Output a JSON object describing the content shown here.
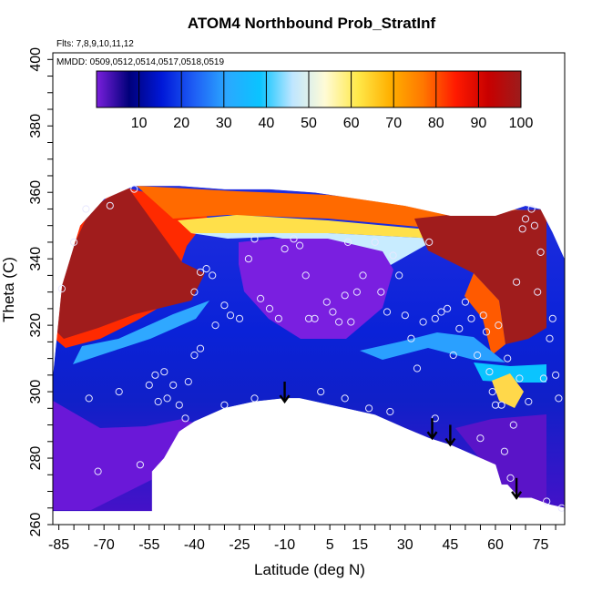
{
  "chart_data": {
    "type": "heatmap",
    "title": "ATOM4 Northbound Prob_StratInf",
    "subtitle_lines": [
      "Flts: 7,8,9,10,11,12",
      "MMDD: 0509,0512,0514,0517,0518,0519"
    ],
    "xlabel": "Latitude (deg N)",
    "ylabel": "Theta (C)",
    "xlim": [
      -87,
      83
    ],
    "ylim": [
      260,
      402
    ],
    "x_ticks": [
      -85,
      -70,
      -55,
      -40,
      -25,
      -10,
      5,
      15,
      30,
      45,
      60,
      75
    ],
    "y_ticks": [
      260,
      280,
      300,
      320,
      340,
      360,
      380,
      400
    ],
    "colorbar": {
      "ticks": [
        10,
        20,
        30,
        40,
        50,
        60,
        70,
        80,
        90,
        100
      ],
      "range": [
        0,
        100
      ],
      "colors": [
        "#7a1fdc",
        "#00007a",
        "#0018d8",
        "#1f5ff5",
        "#2aa8ff",
        "#0ac4ff",
        "#bfe6ff",
        "#fffbd6",
        "#ffe94a",
        "#ffb000",
        "#ff7800",
        "#ff1a00",
        "#c80000",
        "#9c1c1c"
      ]
    },
    "arrows": [
      {
        "lat": -10,
        "theta": 297
      },
      {
        "lat": 39,
        "theta": 286
      },
      {
        "lat": 45,
        "theta": 284
      },
      {
        "lat": 67,
        "theta": 268
      }
    ],
    "boundary": {
      "top": [
        [
          -87,
          305
        ],
        [
          -84,
          332
        ],
        [
          -78,
          350
        ],
        [
          -70,
          358
        ],
        [
          -60,
          362
        ],
        [
          -45,
          362
        ],
        [
          -30,
          361
        ],
        [
          -15,
          361
        ],
        [
          0,
          360
        ],
        [
          15,
          358
        ],
        [
          30,
          356
        ],
        [
          45,
          353
        ],
        [
          60,
          353
        ],
        [
          70,
          356
        ],
        [
          75,
          355
        ],
        [
          79,
          348
        ],
        [
          83,
          340
        ]
      ],
      "bottom": [
        [
          83,
          265
        ],
        [
          78,
          266
        ],
        [
          72,
          268
        ],
        [
          68,
          268
        ],
        [
          64,
          272
        ],
        [
          62,
          272
        ],
        [
          60,
          278
        ],
        [
          55,
          280
        ],
        [
          50,
          282
        ],
        [
          45,
          284
        ],
        [
          38,
          286
        ],
        [
          30,
          289
        ],
        [
          20,
          293
        ],
        [
          10,
          295
        ],
        [
          5,
          296
        ],
        [
          0,
          297
        ],
        [
          -5,
          298
        ],
        [
          -10,
          298
        ],
        [
          -20,
          297
        ],
        [
          -30,
          295
        ],
        [
          -40,
          291
        ],
        [
          -45,
          288
        ],
        [
          -50,
          280
        ],
        [
          -54,
          276
        ],
        [
          -54,
          264
        ],
        [
          -87,
          264
        ]
      ]
    },
    "samples": [
      {
        "lat": -84,
        "theta": 331
      },
      {
        "lat": -80,
        "theta": 345
      },
      {
        "lat": -76,
        "theta": 355
      },
      {
        "lat": -68,
        "theta": 356
      },
      {
        "lat": -60,
        "theta": 361
      },
      {
        "lat": -55,
        "theta": 302
      },
      {
        "lat": -53,
        "theta": 305
      },
      {
        "lat": -52,
        "theta": 297
      },
      {
        "lat": -50,
        "theta": 306
      },
      {
        "lat": -49,
        "theta": 298
      },
      {
        "lat": -47,
        "theta": 302
      },
      {
        "lat": -45,
        "theta": 296
      },
      {
        "lat": -43,
        "theta": 292
      },
      {
        "lat": -42,
        "theta": 303
      },
      {
        "lat": -40,
        "theta": 311
      },
      {
        "lat": -38,
        "theta": 313
      },
      {
        "lat": -40,
        "theta": 330
      },
      {
        "lat": -38,
        "theta": 336
      },
      {
        "lat": -36,
        "theta": 337
      },
      {
        "lat": -34,
        "theta": 335
      },
      {
        "lat": -33,
        "theta": 320
      },
      {
        "lat": -30,
        "theta": 326
      },
      {
        "lat": -28,
        "theta": 323
      },
      {
        "lat": -25,
        "theta": 322
      },
      {
        "lat": -22,
        "theta": 340
      },
      {
        "lat": -20,
        "theta": 346
      },
      {
        "lat": -18,
        "theta": 328
      },
      {
        "lat": -15,
        "theta": 325
      },
      {
        "lat": -12,
        "theta": 322
      },
      {
        "lat": -10,
        "theta": 343
      },
      {
        "lat": -7,
        "theta": 346
      },
      {
        "lat": -5,
        "theta": 344
      },
      {
        "lat": -3,
        "theta": 335
      },
      {
        "lat": -2,
        "theta": 322
      },
      {
        "lat": 0,
        "theta": 322
      },
      {
        "lat": 2,
        "theta": 300
      },
      {
        "lat": 4,
        "theta": 327
      },
      {
        "lat": 6,
        "theta": 324
      },
      {
        "lat": 8,
        "theta": 321
      },
      {
        "lat": 10,
        "theta": 329
      },
      {
        "lat": 11,
        "theta": 345
      },
      {
        "lat": 12,
        "theta": 321
      },
      {
        "lat": 14,
        "theta": 330
      },
      {
        "lat": 16,
        "theta": 335
      },
      {
        "lat": 18,
        "theta": 295
      },
      {
        "lat": 20,
        "theta": 345
      },
      {
        "lat": 22,
        "theta": 330
      },
      {
        "lat": 24,
        "theta": 324
      },
      {
        "lat": 26,
        "theta": 341
      },
      {
        "lat": 28,
        "theta": 335
      },
      {
        "lat": 30,
        "theta": 323
      },
      {
        "lat": 32,
        "theta": 316
      },
      {
        "lat": 34,
        "theta": 307
      },
      {
        "lat": 36,
        "theta": 321
      },
      {
        "lat": 38,
        "theta": 345
      },
      {
        "lat": 40,
        "theta": 322
      },
      {
        "lat": 42,
        "theta": 324
      },
      {
        "lat": 44,
        "theta": 325
      },
      {
        "lat": 46,
        "theta": 311
      },
      {
        "lat": 48,
        "theta": 319
      },
      {
        "lat": 50,
        "theta": 327
      },
      {
        "lat": 52,
        "theta": 322
      },
      {
        "lat": 54,
        "theta": 311
      },
      {
        "lat": 55,
        "theta": 286
      },
      {
        "lat": 56,
        "theta": 323
      },
      {
        "lat": 57,
        "theta": 318
      },
      {
        "lat": 58,
        "theta": 306
      },
      {
        "lat": 59,
        "theta": 300
      },
      {
        "lat": 60,
        "theta": 296
      },
      {
        "lat": 61,
        "theta": 320
      },
      {
        "lat": 62,
        "theta": 296
      },
      {
        "lat": 63,
        "theta": 282
      },
      {
        "lat": 64,
        "theta": 310
      },
      {
        "lat": 65,
        "theta": 274
      },
      {
        "lat": 66,
        "theta": 290
      },
      {
        "lat": 67,
        "theta": 333
      },
      {
        "lat": 68,
        "theta": 304
      },
      {
        "lat": 69,
        "theta": 349
      },
      {
        "lat": 70,
        "theta": 352
      },
      {
        "lat": 71,
        "theta": 297
      },
      {
        "lat": 72,
        "theta": 355
      },
      {
        "lat": 73,
        "theta": 350
      },
      {
        "lat": 74,
        "theta": 330
      },
      {
        "lat": 75,
        "theta": 342
      },
      {
        "lat": 76,
        "theta": 304
      },
      {
        "lat": 77,
        "theta": 267
      },
      {
        "lat": 78,
        "theta": 316
      },
      {
        "lat": 79,
        "theta": 322
      },
      {
        "lat": 80,
        "theta": 305
      },
      {
        "lat": 81,
        "theta": 298
      },
      {
        "lat": 82,
        "theta": 265
      },
      {
        "lat": -75,
        "theta": 298
      },
      {
        "lat": -72,
        "theta": 276
      },
      {
        "lat": -65,
        "theta": 300
      },
      {
        "lat": -58,
        "theta": 278
      },
      {
        "lat": -30,
        "theta": 296
      },
      {
        "lat": -20,
        "theta": 298
      },
      {
        "lat": 10,
        "theta": 298
      },
      {
        "lat": 25,
        "theta": 294
      },
      {
        "lat": 40,
        "theta": 292
      }
    ]
  }
}
